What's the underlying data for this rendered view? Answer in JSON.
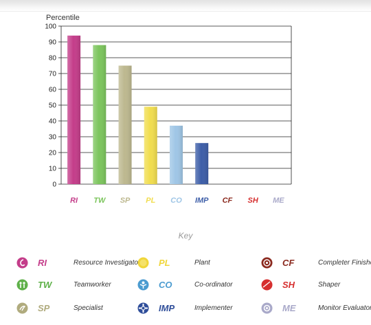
{
  "chart_data": {
    "type": "bar",
    "ylabel": "Percentile",
    "ylim": [
      0,
      100
    ],
    "yticks": [
      0,
      10,
      20,
      30,
      40,
      50,
      60,
      70,
      80,
      90,
      100
    ],
    "grid": true,
    "categories": [
      "RI",
      "TW",
      "SP",
      "PL",
      "CO",
      "IMP",
      "CF",
      "SH",
      "ME"
    ],
    "values": [
      94,
      88,
      75,
      49,
      37,
      26,
      0,
      0,
      0
    ],
    "colors": [
      "#c43d8a",
      "#7cc55d",
      "#bdb88f",
      "#f1dd4e",
      "#9fc6e6",
      "#3d5ea8",
      "#8b2a1f",
      "#d62f2f",
      "#a9a9c9"
    ]
  },
  "key": {
    "title": "Key",
    "items": [
      {
        "code": "RI",
        "label": "Resource Investigator",
        "color": "#c43d8a",
        "icon": "resource-investigator-icon"
      },
      {
        "code": "TW",
        "label": "Teamworker",
        "color": "#5fb14a",
        "icon": "teamworker-icon"
      },
      {
        "code": "SP",
        "label": "Specialist",
        "color": "#b0ab7e",
        "icon": "specialist-icon"
      },
      {
        "code": "PL",
        "label": "Plant",
        "color": "#f0d63a",
        "icon": "plant-icon"
      },
      {
        "code": "CO",
        "label": "Co-ordinator",
        "color": "#4b9bd0",
        "icon": "coordinator-icon"
      },
      {
        "code": "IMP",
        "label": "Implementer",
        "color": "#2f4e9a",
        "icon": "implementer-icon"
      },
      {
        "code": "CF",
        "label": "Completer Finisher",
        "color": "#8b2a1f",
        "icon": "completer-finisher-icon"
      },
      {
        "code": "SH",
        "label": "Shaper",
        "color": "#d62f2f",
        "icon": "shaper-icon"
      },
      {
        "code": "ME",
        "label": "Monitor Evaluator",
        "color": "#a9a9c9",
        "icon": "monitor-evaluator-icon"
      }
    ]
  }
}
